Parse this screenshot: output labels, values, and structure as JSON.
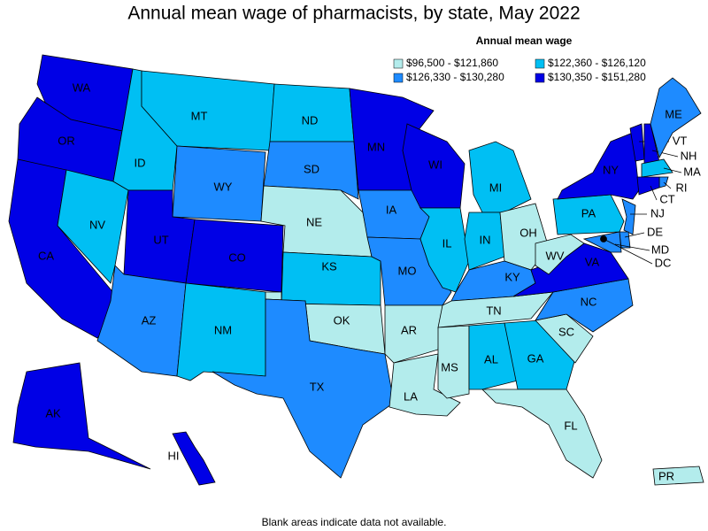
{
  "title": "Annual mean wage of pharmacists, by state, May 2022",
  "legend": {
    "title": "Annual mean wage",
    "bins": [
      {
        "label": "$96,500 - $121,860",
        "color": "#b3ecec"
      },
      {
        "label": "$122,360 - $126,120",
        "color": "#00bff3"
      },
      {
        "label": "$126,330 - $130,280",
        "color": "#1e8bff"
      },
      {
        "label": "$130,350 - $151,280",
        "color": "#0000e6"
      }
    ]
  },
  "states": [
    {
      "label": "WA",
      "range": "$130,350 - $151,280"
    },
    {
      "label": "OR",
      "range": "$130,350 - $151,280"
    },
    {
      "label": "CA",
      "range": "$130,350 - $151,280"
    },
    {
      "label": "NV",
      "range": "$122,360 - $126,120"
    },
    {
      "label": "ID",
      "range": "$122,360 - $126,120"
    },
    {
      "label": "MT",
      "range": "$122,360 - $126,120"
    },
    {
      "label": "WY",
      "range": "$126,330 - $130,280"
    },
    {
      "label": "UT",
      "range": "$130,350 - $151,280"
    },
    {
      "label": "CO",
      "range": "$130,350 - $151,280"
    },
    {
      "label": "AZ",
      "range": "$126,330 - $130,280"
    },
    {
      "label": "NM",
      "range": "$122,360 - $126,120"
    },
    {
      "label": "ND",
      "range": "$122,360 - $126,120"
    },
    {
      "label": "SD",
      "range": "$126,330 - $130,280"
    },
    {
      "label": "NE",
      "range": "$96,500 - $121,860"
    },
    {
      "label": "KS",
      "range": "$122,360 - $126,120"
    },
    {
      "label": "OK",
      "range": "$96,500 - $121,860"
    },
    {
      "label": "TX",
      "range": "$126,330 - $130,280"
    },
    {
      "label": "MN",
      "range": "$130,350 - $151,280"
    },
    {
      "label": "IA",
      "range": "$126,330 - $130,280"
    },
    {
      "label": "MO",
      "range": "$126,330 - $130,280"
    },
    {
      "label": "AR",
      "range": "$96,500 - $121,860"
    },
    {
      "label": "LA",
      "range": "$96,500 - $121,860"
    },
    {
      "label": "WI",
      "range": "$130,350 - $151,280"
    },
    {
      "label": "IL",
      "range": "$122,360 - $126,120"
    },
    {
      "label": "MI",
      "range": "$122,360 - $126,120"
    },
    {
      "label": "IN",
      "range": "$122,360 - $126,120"
    },
    {
      "label": "OH",
      "range": "$96,500 - $121,860"
    },
    {
      "label": "KY",
      "range": "$126,330 - $130,280"
    },
    {
      "label": "TN",
      "range": "$96,500 - $121,860"
    },
    {
      "label": "MS",
      "range": "$96,500 - $121,860"
    },
    {
      "label": "AL",
      "range": "$122,360 - $126,120"
    },
    {
      "label": "GA",
      "range": "$122,360 - $126,120"
    },
    {
      "label": "FL",
      "range": "$96,500 - $121,860"
    },
    {
      "label": "SC",
      "range": "$96,500 - $121,860"
    },
    {
      "label": "NC",
      "range": "$126,330 - $130,280"
    },
    {
      "label": "VA",
      "range": "$130,350 - $151,280"
    },
    {
      "label": "WV",
      "range": "$96,500 - $121,860"
    },
    {
      "label": "PA",
      "range": "$122,360 - $126,120"
    },
    {
      "label": "NY",
      "range": "$130,350 - $151,280"
    },
    {
      "label": "VT",
      "range": "$130,350 - $151,280"
    },
    {
      "label": "NH",
      "range": "$130,350 - $151,280"
    },
    {
      "label": "ME",
      "range": "$126,330 - $130,280"
    },
    {
      "label": "MA",
      "range": "$122,360 - $126,120"
    },
    {
      "label": "RI",
      "range": "$126,330 - $130,280"
    },
    {
      "label": "CT",
      "range": "$130,350 - $151,280"
    },
    {
      "label": "NJ",
      "range": "$126,330 - $130,280"
    },
    {
      "label": "DE",
      "range": "$126,330 - $130,280"
    },
    {
      "label": "MD",
      "range": "$126,330 - $130,280"
    },
    {
      "label": "DC",
      "range": "$130,350 - $151,280"
    },
    {
      "label": "AK",
      "range": "$130,350 - $151,280"
    },
    {
      "label": "HI",
      "range": "$130,350 - $151,280"
    },
    {
      "label": "PR",
      "range": "$96,500 - $121,860"
    }
  ],
  "footnote": "Blank areas indicate data not available."
}
